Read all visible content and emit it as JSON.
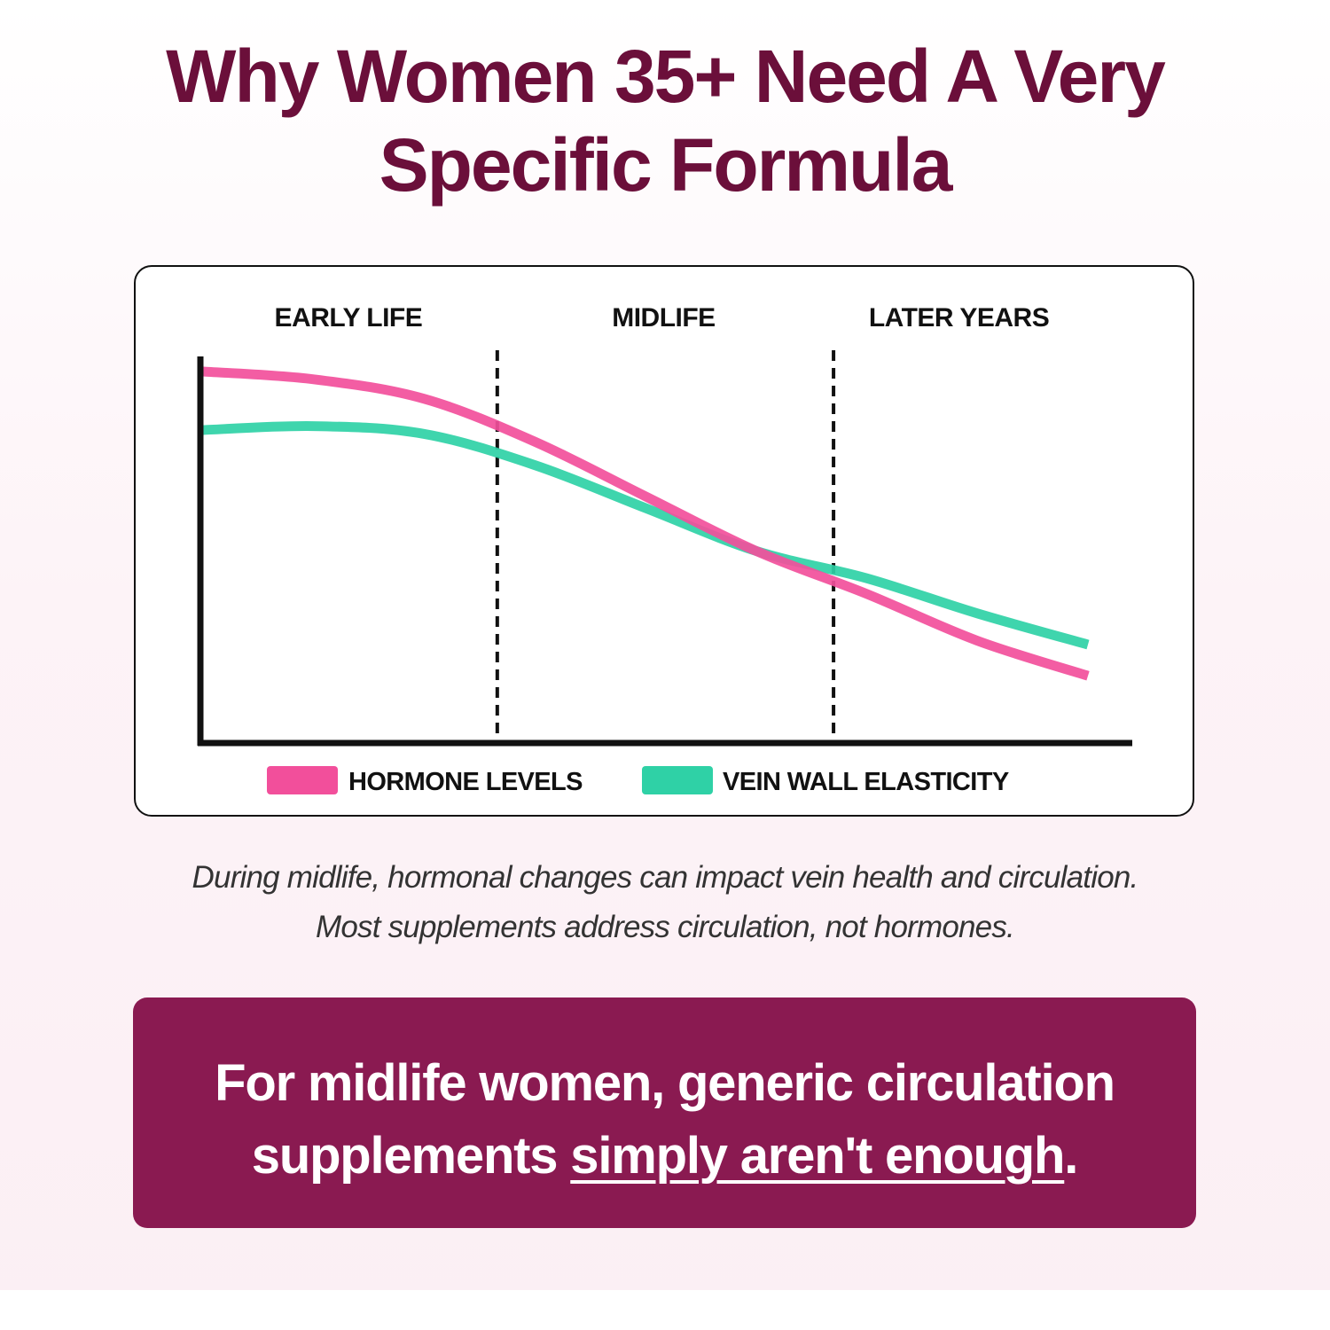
{
  "headline": {
    "line1": "Why Women 35+ Need A Very",
    "line2": "Specific Formula"
  },
  "colors": {
    "headline": "#6b0f3a",
    "hormone": "#f24f9b",
    "vein": "#2fd1a6",
    "cta_bg": "#8a1a51"
  },
  "chart_data": {
    "type": "line",
    "title": "",
    "xlabel": "",
    "ylabel": "",
    "x": [
      0,
      1,
      2,
      3,
      4,
      5,
      6,
      7,
      8
    ],
    "xlim": [
      0,
      8
    ],
    "ylim": [
      0,
      100
    ],
    "phases": [
      {
        "label": "EARLY LIFE",
        "start": 0,
        "end": 2.66
      },
      {
        "label": "MIDLIFE",
        "start": 2.66,
        "end": 5.7
      },
      {
        "label": "LATER YEARS",
        "start": 5.7,
        "end": 8
      }
    ],
    "dividers": [
      2.66,
      5.7
    ],
    "series": [
      {
        "name": "HORMONE LEVELS",
        "color": "#f24f9b",
        "values": [
          95,
          93,
          88,
          77,
          63,
          49,
          38,
          26,
          17
        ]
      },
      {
        "name": "VEIN WALL ELASTICITY",
        "color": "#2fd1a6",
        "values": [
          80,
          81,
          79,
          71,
          60,
          49,
          42,
          33,
          25
        ]
      }
    ],
    "legend_position": "bottom",
    "grid": false
  },
  "caption": {
    "line1": "During midlife, hormonal changes can impact vein health and circulation.",
    "line2": "Most supplements address circulation, not hormones."
  },
  "cta": {
    "line1": "For midlife women, generic circulation",
    "line2_plain": "supplements ",
    "line2_underlined": "simply aren't enough",
    "line2_end": "."
  }
}
